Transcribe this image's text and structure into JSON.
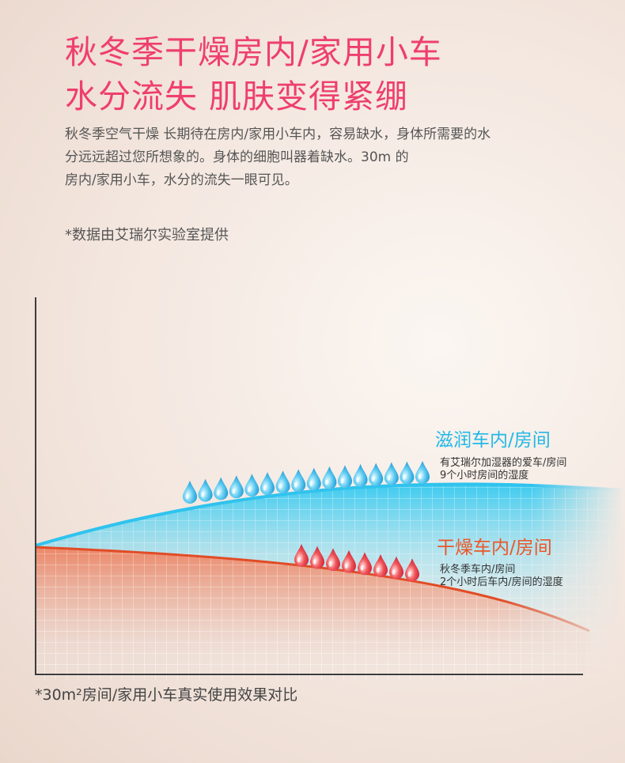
{
  "headline": {
    "line1": "秋冬季干燥房内/家用小车",
    "line2": "水分流失 肌肤变得紧绷"
  },
  "intro": {
    "line1": "秋冬季空气干燥 长期待在房内/家用小车内，容易缺水，身体所需要的水",
    "line2": "分远远超过您所想象的。身体的细胞叫器着缺水。30m  的",
    "line3": "房内/家用小车，水分的流失一眼可见。"
  },
  "note": "*数据由艾瑞尔实验室提供",
  "series": {
    "moist": {
      "title": "滋润车内/房间",
      "desc_line1": "有艾瑞尔加湿器的爱车/房间",
      "desc_line2": "9个小时房间的湿度",
      "color": "#22b8e6"
    },
    "dry": {
      "title": "干燥车内/房间",
      "desc_line1": "秋冬季车内/房间",
      "desc_line2": "2个小时后车内/房间的湿度",
      "color": "#ec5628"
    }
  },
  "icons": {
    "moist_drop": "blue-water-drop-icon",
    "dry_drop": "red-water-drop-icon"
  },
  "footnote": "*30m²房间/家用小车真实使用效果对比"
}
